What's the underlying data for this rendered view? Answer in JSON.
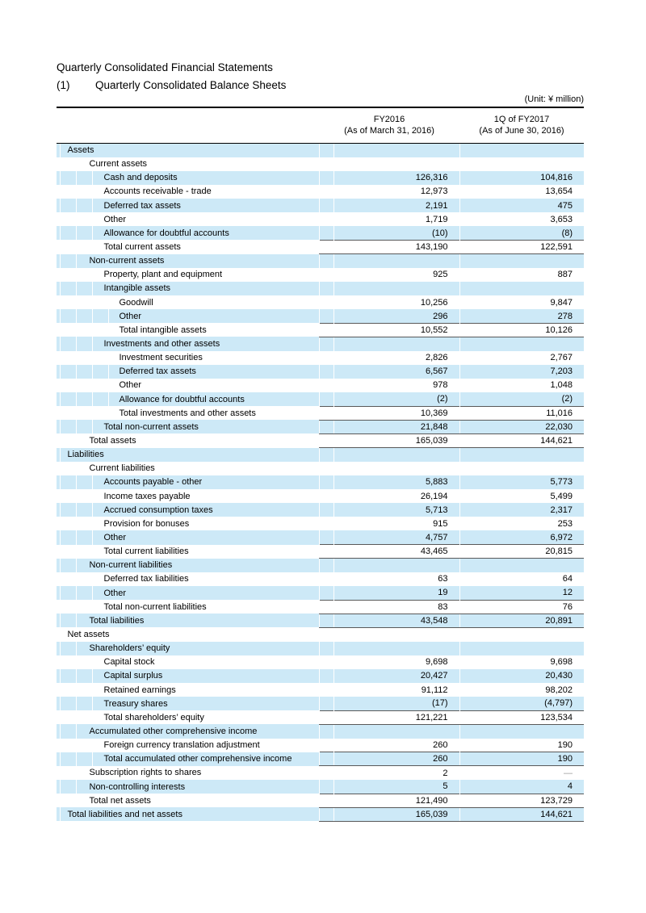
{
  "page": {
    "title": "Quarterly Consolidated Financial Statements",
    "section_number": "(1)",
    "section_title": "Quarterly Consolidated Balance Sheets",
    "unit_note": "(Unit: ¥ million)"
  },
  "colors": {
    "row_stripe": "#CDE9F7",
    "total_rule": "#595959",
    "header_rule": "#000000"
  },
  "table": {
    "columns": [
      {
        "line1": "FY2016",
        "line2": "(As of March 31, 2016)"
      },
      {
        "line1": "1Q of FY2017",
        "line2": "(As of June 30, 2016)"
      }
    ],
    "rows": [
      {
        "label": "Assets",
        "indent": 0,
        "v1": "",
        "v2": "",
        "total": false
      },
      {
        "label": "Current assets",
        "indent": 1,
        "v1": "",
        "v2": "",
        "total": false
      },
      {
        "label": "Cash and deposits",
        "indent": 2,
        "v1": "126,316",
        "v2": "104,816",
        "total": false
      },
      {
        "label": "Accounts receivable - trade",
        "indent": 2,
        "v1": "12,973",
        "v2": "13,654",
        "total": false
      },
      {
        "label": "Deferred tax assets",
        "indent": 2,
        "v1": "2,191",
        "v2": "475",
        "total": false
      },
      {
        "label": "Other",
        "indent": 2,
        "v1": "1,719",
        "v2": "3,653",
        "total": false
      },
      {
        "label": "Allowance for doubtful accounts",
        "indent": 2,
        "v1": "(10)",
        "v2": "(8)",
        "total": false
      },
      {
        "label": "Total current assets",
        "indent": 2,
        "v1": "143,190",
        "v2": "122,591",
        "total": true
      },
      {
        "label": "Non-current assets",
        "indent": 1,
        "v1": "",
        "v2": "",
        "total": false
      },
      {
        "label": "Property, plant and equipment",
        "indent": 2,
        "v1": "925",
        "v2": "887",
        "total": false
      },
      {
        "label": "Intangible assets",
        "indent": 2,
        "v1": "",
        "v2": "",
        "total": false
      },
      {
        "label": "Goodwill",
        "indent": 3,
        "v1": "10,256",
        "v2": "9,847",
        "total": false
      },
      {
        "label": "Other",
        "indent": 3,
        "v1": "296",
        "v2": "278",
        "total": false
      },
      {
        "label": "Total intangible assets",
        "indent": 3,
        "v1": "10,552",
        "v2": "10,126",
        "total": true
      },
      {
        "label": "Investments and other assets",
        "indent": 2,
        "v1": "",
        "v2": "",
        "total": false
      },
      {
        "label": "Investment securities",
        "indent": 3,
        "v1": "2,826",
        "v2": "2,767",
        "total": false
      },
      {
        "label": "Deferred tax assets",
        "indent": 3,
        "v1": "6,567",
        "v2": "7,203",
        "total": false
      },
      {
        "label": "Other",
        "indent": 3,
        "v1": "978",
        "v2": "1,048",
        "total": false
      },
      {
        "label": "Allowance for doubtful accounts",
        "indent": 3,
        "v1": "(2)",
        "v2": "(2)",
        "total": false
      },
      {
        "label": "Total investments and other assets",
        "indent": 3,
        "v1": "10,369",
        "v2": "11,016",
        "total": true
      },
      {
        "label": "Total non-current assets",
        "indent": 2,
        "v1": "21,848",
        "v2": "22,030",
        "total": true
      },
      {
        "label": "Total assets",
        "indent": 1,
        "v1": "165,039",
        "v2": "144,621",
        "total": true
      },
      {
        "label": "Liabilities",
        "indent": 0,
        "v1": "",
        "v2": "",
        "total": false
      },
      {
        "label": "Current liabilities",
        "indent": 1,
        "v1": "",
        "v2": "",
        "total": false
      },
      {
        "label": "Accounts payable - other",
        "indent": 2,
        "v1": "5,883",
        "v2": "5,773",
        "total": false
      },
      {
        "label": "Income taxes payable",
        "indent": 2,
        "v1": "26,194",
        "v2": "5,499",
        "total": false
      },
      {
        "label": "Accrued consumption taxes",
        "indent": 2,
        "v1": "5,713",
        "v2": "2,317",
        "total": false
      },
      {
        "label": "Provision for bonuses",
        "indent": 2,
        "v1": "915",
        "v2": "253",
        "total": false
      },
      {
        "label": "Other",
        "indent": 2,
        "v1": "4,757",
        "v2": "6,972",
        "total": false
      },
      {
        "label": "Total current liabilities",
        "indent": 2,
        "v1": "43,465",
        "v2": "20,815",
        "total": true
      },
      {
        "label": "Non-current liabilities",
        "indent": 1,
        "v1": "",
        "v2": "",
        "total": false
      },
      {
        "label": "Deferred tax liabilities",
        "indent": 2,
        "v1": "63",
        "v2": "64",
        "total": false
      },
      {
        "label": "Other",
        "indent": 2,
        "v1": "19",
        "v2": "12",
        "total": false
      },
      {
        "label": "Total non-current liabilities",
        "indent": 2,
        "v1": "83",
        "v2": "76",
        "total": true
      },
      {
        "label": "Total liabilities",
        "indent": 1,
        "v1": "43,548",
        "v2": "20,891",
        "total": true
      },
      {
        "label": "Net assets",
        "indent": 0,
        "v1": "",
        "v2": "",
        "total": false
      },
      {
        "label": "Shareholders’ equity",
        "indent": 1,
        "v1": "",
        "v2": "",
        "total": false
      },
      {
        "label": "Capital stock",
        "indent": 2,
        "v1": "9,698",
        "v2": "9,698",
        "total": false
      },
      {
        "label": "Capital surplus",
        "indent": 2,
        "v1": "20,427",
        "v2": "20,430",
        "total": false
      },
      {
        "label": "Retained earnings",
        "indent": 2,
        "v1": "91,112",
        "v2": "98,202",
        "total": false
      },
      {
        "label": "Treasury shares",
        "indent": 2,
        "v1": "(17)",
        "v2": "(4,797)",
        "total": false
      },
      {
        "label": "Total shareholders’ equity",
        "indent": 2,
        "v1": "121,221",
        "v2": "123,534",
        "total": true
      },
      {
        "label": "Accumulated other comprehensive income",
        "indent": 1,
        "v1": "",
        "v2": "",
        "total": false
      },
      {
        "label": "Foreign currency translation adjustment",
        "indent": 2,
        "v1": "260",
        "v2": "190",
        "total": false
      },
      {
        "label": "Total accumulated other comprehensive income",
        "indent": 2,
        "v1": "260",
        "v2": "190",
        "total": true
      },
      {
        "label": "Subscription rights to shares",
        "indent": 1,
        "v1": "2",
        "v2": "—",
        "total": false
      },
      {
        "label": "Non-controlling interests",
        "indent": 1,
        "v1": "5",
        "v2": "4",
        "total": false
      },
      {
        "label": "Total net assets",
        "indent": 1,
        "v1": "121,490",
        "v2": "123,729",
        "total": true
      },
      {
        "label": "Total liabilities and net assets",
        "indent": 0,
        "v1": "165,039",
        "v2": "144,621",
        "total": true
      }
    ]
  }
}
